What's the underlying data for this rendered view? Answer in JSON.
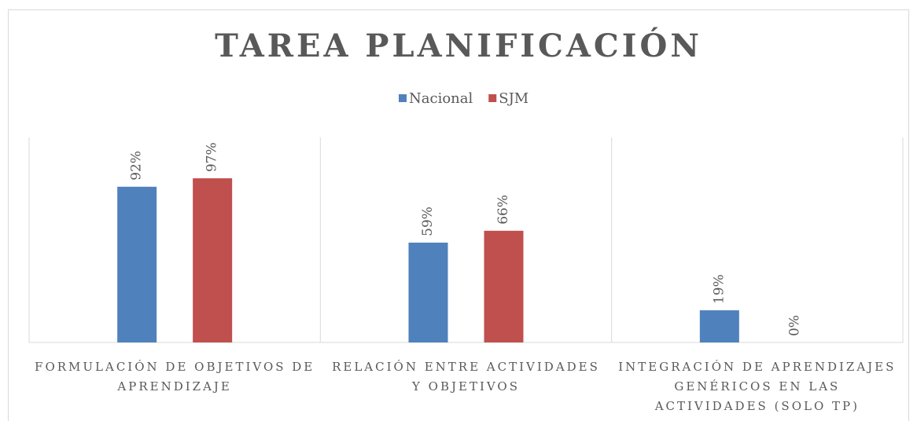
{
  "chart_data": {
    "type": "bar",
    "title": "TAREA PLANIFICACIÓN",
    "categories": [
      "FORMULACIÓN DE OBJETIVOS DE APRENDIZAJE",
      "RELACIÓN ENTRE ACTIVIDADES Y OBJETIVOS",
      "INTEGRACIÓN DE APRENDIZAJES GENÉRICOS EN LAS ACTIVIDADES (SOLO TP)"
    ],
    "series": [
      {
        "name": "Nacional",
        "color": "#4f81bd",
        "values": [
          92,
          59,
          19
        ],
        "value_labels": [
          "92%",
          "59%",
          "19%"
        ]
      },
      {
        "name": "SJM",
        "color": "#c0504d",
        "values": [
          97,
          66,
          0
        ],
        "value_labels": [
          "97%",
          "66%",
          "0%"
        ]
      }
    ],
    "legend": "top"
  }
}
